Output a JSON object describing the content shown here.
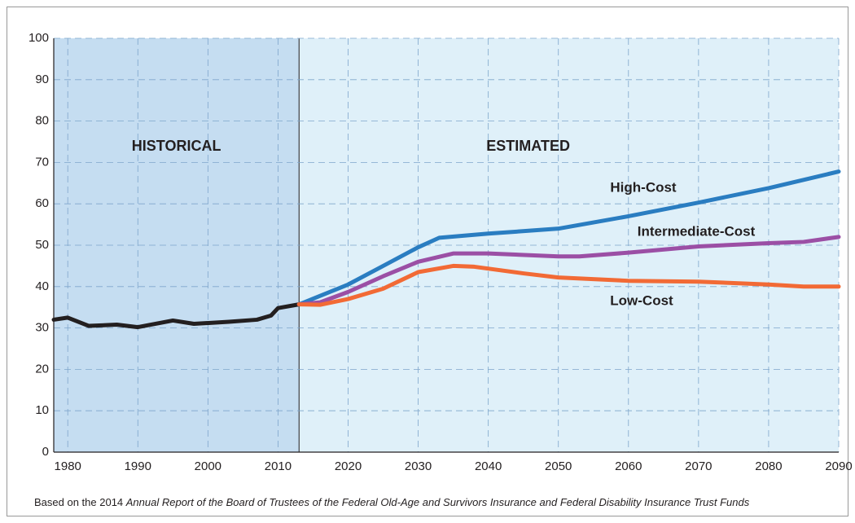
{
  "chart_data": {
    "type": "line",
    "xlim": [
      1978,
      2090
    ],
    "ylim": [
      0,
      100
    ],
    "xticks": [
      1980,
      1990,
      2000,
      2010,
      2020,
      2030,
      2040,
      2050,
      2060,
      2070,
      2080,
      2090
    ],
    "yticks": [
      0,
      10,
      20,
      30,
      40,
      50,
      60,
      70,
      80,
      90,
      100
    ],
    "grid": true,
    "regions": [
      {
        "label": "HISTORICAL",
        "from": 1978,
        "to": 2013,
        "color": "#c5ddf1"
      },
      {
        "label": "ESTIMATED",
        "from": 2013,
        "to": 2090,
        "color": "#dff0f9"
      }
    ],
    "series": [
      {
        "color": "#231f20",
        "x": [
          1978,
          1980,
          1983,
          1987,
          1990,
          1995,
          1998,
          2003,
          2007,
          2009,
          2010,
          2013
        ],
        "values": [
          32,
          32.5,
          30.5,
          30.8,
          30.2,
          31.8,
          31,
          31.5,
          32,
          33,
          34.8,
          35.7
        ]
      },
      {
        "name": "High-Cost",
        "color": "#2a7dc1",
        "x": [
          2013,
          2020,
          2025,
          2030,
          2033,
          2040,
          2050,
          2060,
          2070,
          2080,
          2090
        ],
        "values": [
          35.7,
          40.5,
          45,
          49.5,
          51.8,
          52.8,
          54,
          57,
          60.3,
          63.8,
          67.8
        ]
      },
      {
        "name": "Intermediate-Cost",
        "color": "#9b4fa5",
        "x": [
          2013,
          2016,
          2020,
          2025,
          2030,
          2035,
          2040,
          2050,
          2053,
          2060,
          2070,
          2080,
          2085,
          2090
        ],
        "values": [
          35.7,
          36.2,
          38.7,
          42.5,
          46,
          48,
          48,
          47.3,
          47.3,
          48.2,
          49.7,
          50.5,
          50.8,
          52
        ]
      },
      {
        "name": "Low-Cost",
        "color": "#f26a35",
        "x": [
          2013,
          2016,
          2020,
          2025,
          2030,
          2035,
          2038,
          2045,
          2050,
          2060,
          2070,
          2080,
          2085,
          2090
        ],
        "values": [
          35.7,
          35.6,
          37,
          39.5,
          43.5,
          45,
          44.8,
          43.2,
          42.2,
          41.4,
          41.2,
          40.5,
          40,
          40
        ]
      }
    ],
    "footnote": {
      "prefix": "Based on the 2014 ",
      "title": "Annual Report of the Board of Trustees of the Federal Old-Age and Survivors Insurance and Federal Disability Insurance Trust Funds"
    }
  }
}
